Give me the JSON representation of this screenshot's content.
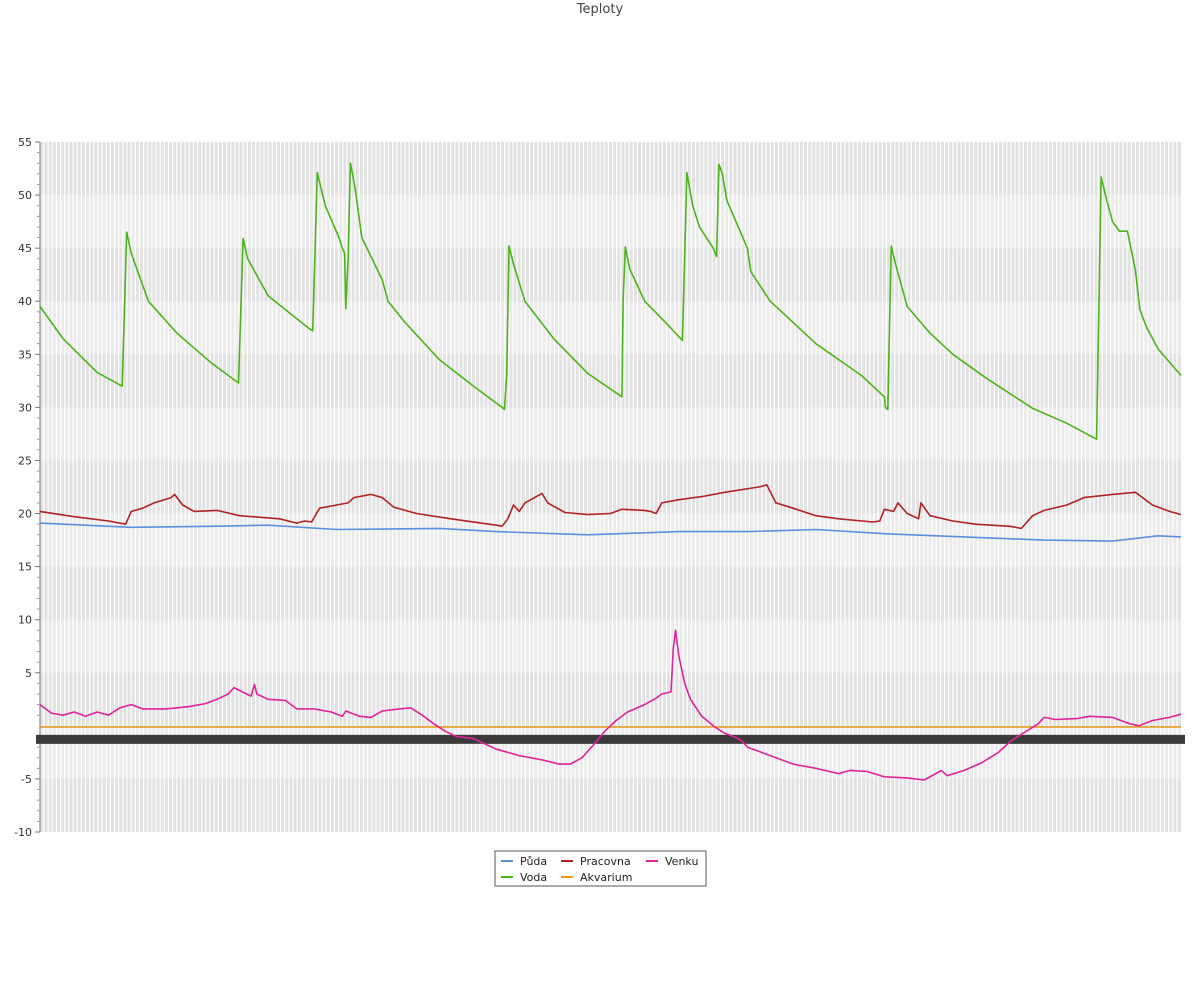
{
  "chart_data": {
    "type": "line",
    "title": "Teploty",
    "xlabel": "",
    "ylabel": "",
    "ylim": [
      -10,
      55
    ],
    "yticks": [
      -10,
      -5,
      5,
      10,
      15,
      20,
      25,
      30,
      35,
      40,
      45,
      50,
      55
    ],
    "grid": true,
    "legend_position": "bottom-center",
    "x_count": 1000,
    "series": [
      {
        "name": "Půda",
        "color": "#5b8fe0",
        "points": [
          [
            0,
            19.1
          ],
          [
            80,
            18.7
          ],
          [
            150,
            18.8
          ],
          [
            200,
            18.9
          ],
          [
            260,
            18.5
          ],
          [
            350,
            18.6
          ],
          [
            400,
            18.3
          ],
          [
            480,
            18.0
          ],
          [
            560,
            18.3
          ],
          [
            620,
            18.3
          ],
          [
            680,
            18.5
          ],
          [
            740,
            18.1
          ],
          [
            810,
            17.8
          ],
          [
            880,
            17.5
          ],
          [
            940,
            17.4
          ],
          [
            980,
            17.9
          ],
          [
            1000,
            17.8
          ]
        ]
      },
      {
        "name": "Voda",
        "color": "#4db31a",
        "points": [
          [
            0,
            39.5
          ],
          [
            20,
            36.5
          ],
          [
            50,
            33.3
          ],
          [
            72,
            32.0
          ],
          [
            76,
            46.5
          ],
          [
            80,
            44.5
          ],
          [
            95,
            40
          ],
          [
            120,
            37
          ],
          [
            150,
            34.2
          ],
          [
            174,
            32.3
          ],
          [
            178,
            45.9
          ],
          [
            182,
            44
          ],
          [
            200,
            40.5
          ],
          [
            235,
            37.5
          ],
          [
            239,
            37.2
          ],
          [
            243,
            52.1
          ],
          [
            250,
            49
          ],
          [
            262,
            46
          ],
          [
            265,
            45
          ],
          [
            267,
            44.5
          ],
          [
            268,
            39.3
          ],
          [
            270,
            44
          ],
          [
            272,
            53
          ],
          [
            276,
            50.8
          ],
          [
            282,
            46
          ],
          [
            300,
            42
          ],
          [
            305,
            40
          ],
          [
            320,
            38
          ],
          [
            350,
            34.5
          ],
          [
            380,
            32
          ],
          [
            405,
            30
          ],
          [
            407,
            29.8
          ],
          [
            409,
            33
          ],
          [
            411,
            45.2
          ],
          [
            415,
            43.5
          ],
          [
            425,
            40
          ],
          [
            450,
            36.5
          ],
          [
            480,
            33.2
          ],
          [
            510,
            31
          ],
          [
            511,
            40
          ],
          [
            513,
            45.1
          ],
          [
            517,
            43
          ],
          [
            530,
            40
          ],
          [
            550,
            37.8
          ],
          [
            563,
            36.3
          ],
          [
            567,
            52.1
          ],
          [
            572,
            49
          ],
          [
            578,
            47
          ],
          [
            590,
            45
          ],
          [
            593,
            44.2
          ],
          [
            595,
            52.9
          ],
          [
            598,
            52
          ],
          [
            602,
            49.5
          ],
          [
            620,
            45
          ],
          [
            623,
            42.8
          ],
          [
            640,
            40
          ],
          [
            680,
            36
          ],
          [
            720,
            33
          ],
          [
            740,
            31
          ],
          [
            741,
            30
          ],
          [
            743,
            29.8
          ],
          [
            746,
            45.2
          ],
          [
            750,
            43.4
          ],
          [
            760,
            39.5
          ],
          [
            780,
            37
          ],
          [
            800,
            35
          ],
          [
            830,
            32.7
          ],
          [
            870,
            29.9
          ],
          [
            900,
            28.5
          ],
          [
            926,
            27
          ],
          [
            930,
            51.7
          ],
          [
            935,
            49.5
          ],
          [
            940,
            47.5
          ],
          [
            946,
            46.6
          ],
          [
            953,
            46.6
          ],
          [
            958,
            44
          ],
          [
            960,
            42.9
          ],
          [
            964,
            39.2
          ],
          [
            970,
            37.5
          ],
          [
            980,
            35.5
          ],
          [
            1000,
            33
          ]
        ]
      },
      {
        "name": "Pracovna",
        "color": "#b22222",
        "points": [
          [
            0,
            20.2
          ],
          [
            30,
            19.7
          ],
          [
            60,
            19.3
          ],
          [
            75,
            19.0
          ],
          [
            80,
            20.2
          ],
          [
            90,
            20.5
          ],
          [
            100,
            21.0
          ],
          [
            115,
            21.5
          ],
          [
            118,
            21.8
          ],
          [
            125,
            20.8
          ],
          [
            135,
            20.2
          ],
          [
            155,
            20.3
          ],
          [
            175,
            19.8
          ],
          [
            210,
            19.5
          ],
          [
            225,
            19.1
          ],
          [
            232,
            19.3
          ],
          [
            238,
            19.2
          ],
          [
            245,
            20.5
          ],
          [
            260,
            20.8
          ],
          [
            270,
            21.0
          ],
          [
            275,
            21.5
          ],
          [
            290,
            21.8
          ],
          [
            300,
            21.5
          ],
          [
            310,
            20.6
          ],
          [
            330,
            20.0
          ],
          [
            360,
            19.5
          ],
          [
            400,
            18.9
          ],
          [
            405,
            18.8
          ],
          [
            410,
            19.5
          ],
          [
            415,
            20.8
          ],
          [
            420,
            20.2
          ],
          [
            425,
            21.0
          ],
          [
            440,
            21.9
          ],
          [
            445,
            21.0
          ],
          [
            460,
            20.1
          ],
          [
            480,
            19.9
          ],
          [
            500,
            20.0
          ],
          [
            510,
            20.4
          ],
          [
            530,
            20.3
          ],
          [
            535,
            20.2
          ],
          [
            540,
            20.0
          ],
          [
            545,
            21.0
          ],
          [
            560,
            21.3
          ],
          [
            580,
            21.6
          ],
          [
            600,
            22.0
          ],
          [
            630,
            22.5
          ],
          [
            637,
            22.7
          ],
          [
            645,
            21.0
          ],
          [
            660,
            20.5
          ],
          [
            680,
            19.8
          ],
          [
            700,
            19.5
          ],
          [
            730,
            19.2
          ],
          [
            736,
            19.3
          ],
          [
            740,
            20.4
          ],
          [
            748,
            20.2
          ],
          [
            752,
            21.0
          ],
          [
            760,
            20.0
          ],
          [
            770,
            19.5
          ],
          [
            772,
            21.0
          ],
          [
            780,
            19.8
          ],
          [
            800,
            19.3
          ],
          [
            820,
            19.0
          ],
          [
            850,
            18.8
          ],
          [
            860,
            18.6
          ],
          [
            870,
            19.8
          ],
          [
            880,
            20.3
          ],
          [
            900,
            20.8
          ],
          [
            915,
            21.5
          ],
          [
            940,
            21.8
          ],
          [
            960,
            22.0
          ],
          [
            975,
            20.8
          ],
          [
            990,
            20.2
          ],
          [
            1000,
            19.9
          ]
        ]
      },
      {
        "name": "Akvarium",
        "color": "#e89a1f",
        "points": [
          [
            0,
            -0.1
          ],
          [
            1000,
            -0.1
          ]
        ]
      },
      {
        "name": "Venku",
        "color": "#e0239b",
        "points": [
          [
            0,
            2.0
          ],
          [
            10,
            1.2
          ],
          [
            20,
            1.0
          ],
          [
            30,
            1.3
          ],
          [
            40,
            0.9
          ],
          [
            50,
            1.3
          ],
          [
            60,
            1.0
          ],
          [
            70,
            1.7
          ],
          [
            80,
            2.0
          ],
          [
            90,
            1.6
          ],
          [
            110,
            1.6
          ],
          [
            130,
            1.8
          ],
          [
            145,
            2.1
          ],
          [
            155,
            2.5
          ],
          [
            165,
            3.0
          ],
          [
            170,
            3.6
          ],
          [
            185,
            2.8
          ],
          [
            188,
            3.9
          ],
          [
            190,
            3.0
          ],
          [
            200,
            2.5
          ],
          [
            215,
            2.4
          ],
          [
            225,
            1.6
          ],
          [
            240,
            1.6
          ],
          [
            255,
            1.3
          ],
          [
            265,
            0.9
          ],
          [
            268,
            1.4
          ],
          [
            280,
            0.9
          ],
          [
            290,
            0.8
          ],
          [
            300,
            1.4
          ],
          [
            315,
            1.6
          ],
          [
            325,
            1.7
          ],
          [
            335,
            1.0
          ],
          [
            345,
            0.2
          ],
          [
            355,
            -0.5
          ],
          [
            365,
            -1.0
          ],
          [
            380,
            -1.2
          ],
          [
            400,
            -2.2
          ],
          [
            420,
            -2.8
          ],
          [
            440,
            -3.2
          ],
          [
            455,
            -3.6
          ],
          [
            465,
            -3.6
          ],
          [
            475,
            -3.0
          ],
          [
            485,
            -1.8
          ],
          [
            495,
            -0.5
          ],
          [
            505,
            0.5
          ],
          [
            515,
            1.3
          ],
          [
            530,
            2.0
          ],
          [
            540,
            2.6
          ],
          [
            545,
            3.0
          ],
          [
            553,
            3.2
          ],
          [
            555,
            7.3
          ],
          [
            557,
            9.0
          ],
          [
            560,
            6.5
          ],
          [
            565,
            4.0
          ],
          [
            570,
            2.5
          ],
          [
            580,
            0.9
          ],
          [
            590,
            0.0
          ],
          [
            600,
            -0.7
          ],
          [
            610,
            -1.1
          ],
          [
            615,
            -1.4
          ],
          [
            620,
            -2.0
          ],
          [
            640,
            -2.8
          ],
          [
            660,
            -3.6
          ],
          [
            680,
            -4.0
          ],
          [
            700,
            -4.5
          ],
          [
            710,
            -4.2
          ],
          [
            725,
            -4.3
          ],
          [
            740,
            -4.8
          ],
          [
            760,
            -4.9
          ],
          [
            775,
            -5.1
          ],
          [
            790,
            -4.2
          ],
          [
            795,
            -4.7
          ],
          [
            810,
            -4.2
          ],
          [
            825,
            -3.5
          ],
          [
            840,
            -2.5
          ],
          [
            850,
            -1.5
          ],
          [
            860,
            -0.8
          ],
          [
            875,
            0.2
          ],
          [
            880,
            0.8
          ],
          [
            890,
            0.6
          ],
          [
            910,
            0.7
          ],
          [
            920,
            0.9
          ],
          [
            940,
            0.8
          ],
          [
            955,
            0.2
          ],
          [
            963,
            0.0
          ],
          [
            975,
            0.5
          ],
          [
            990,
            0.8
          ],
          [
            1000,
            1.1
          ]
        ]
      }
    ]
  }
}
